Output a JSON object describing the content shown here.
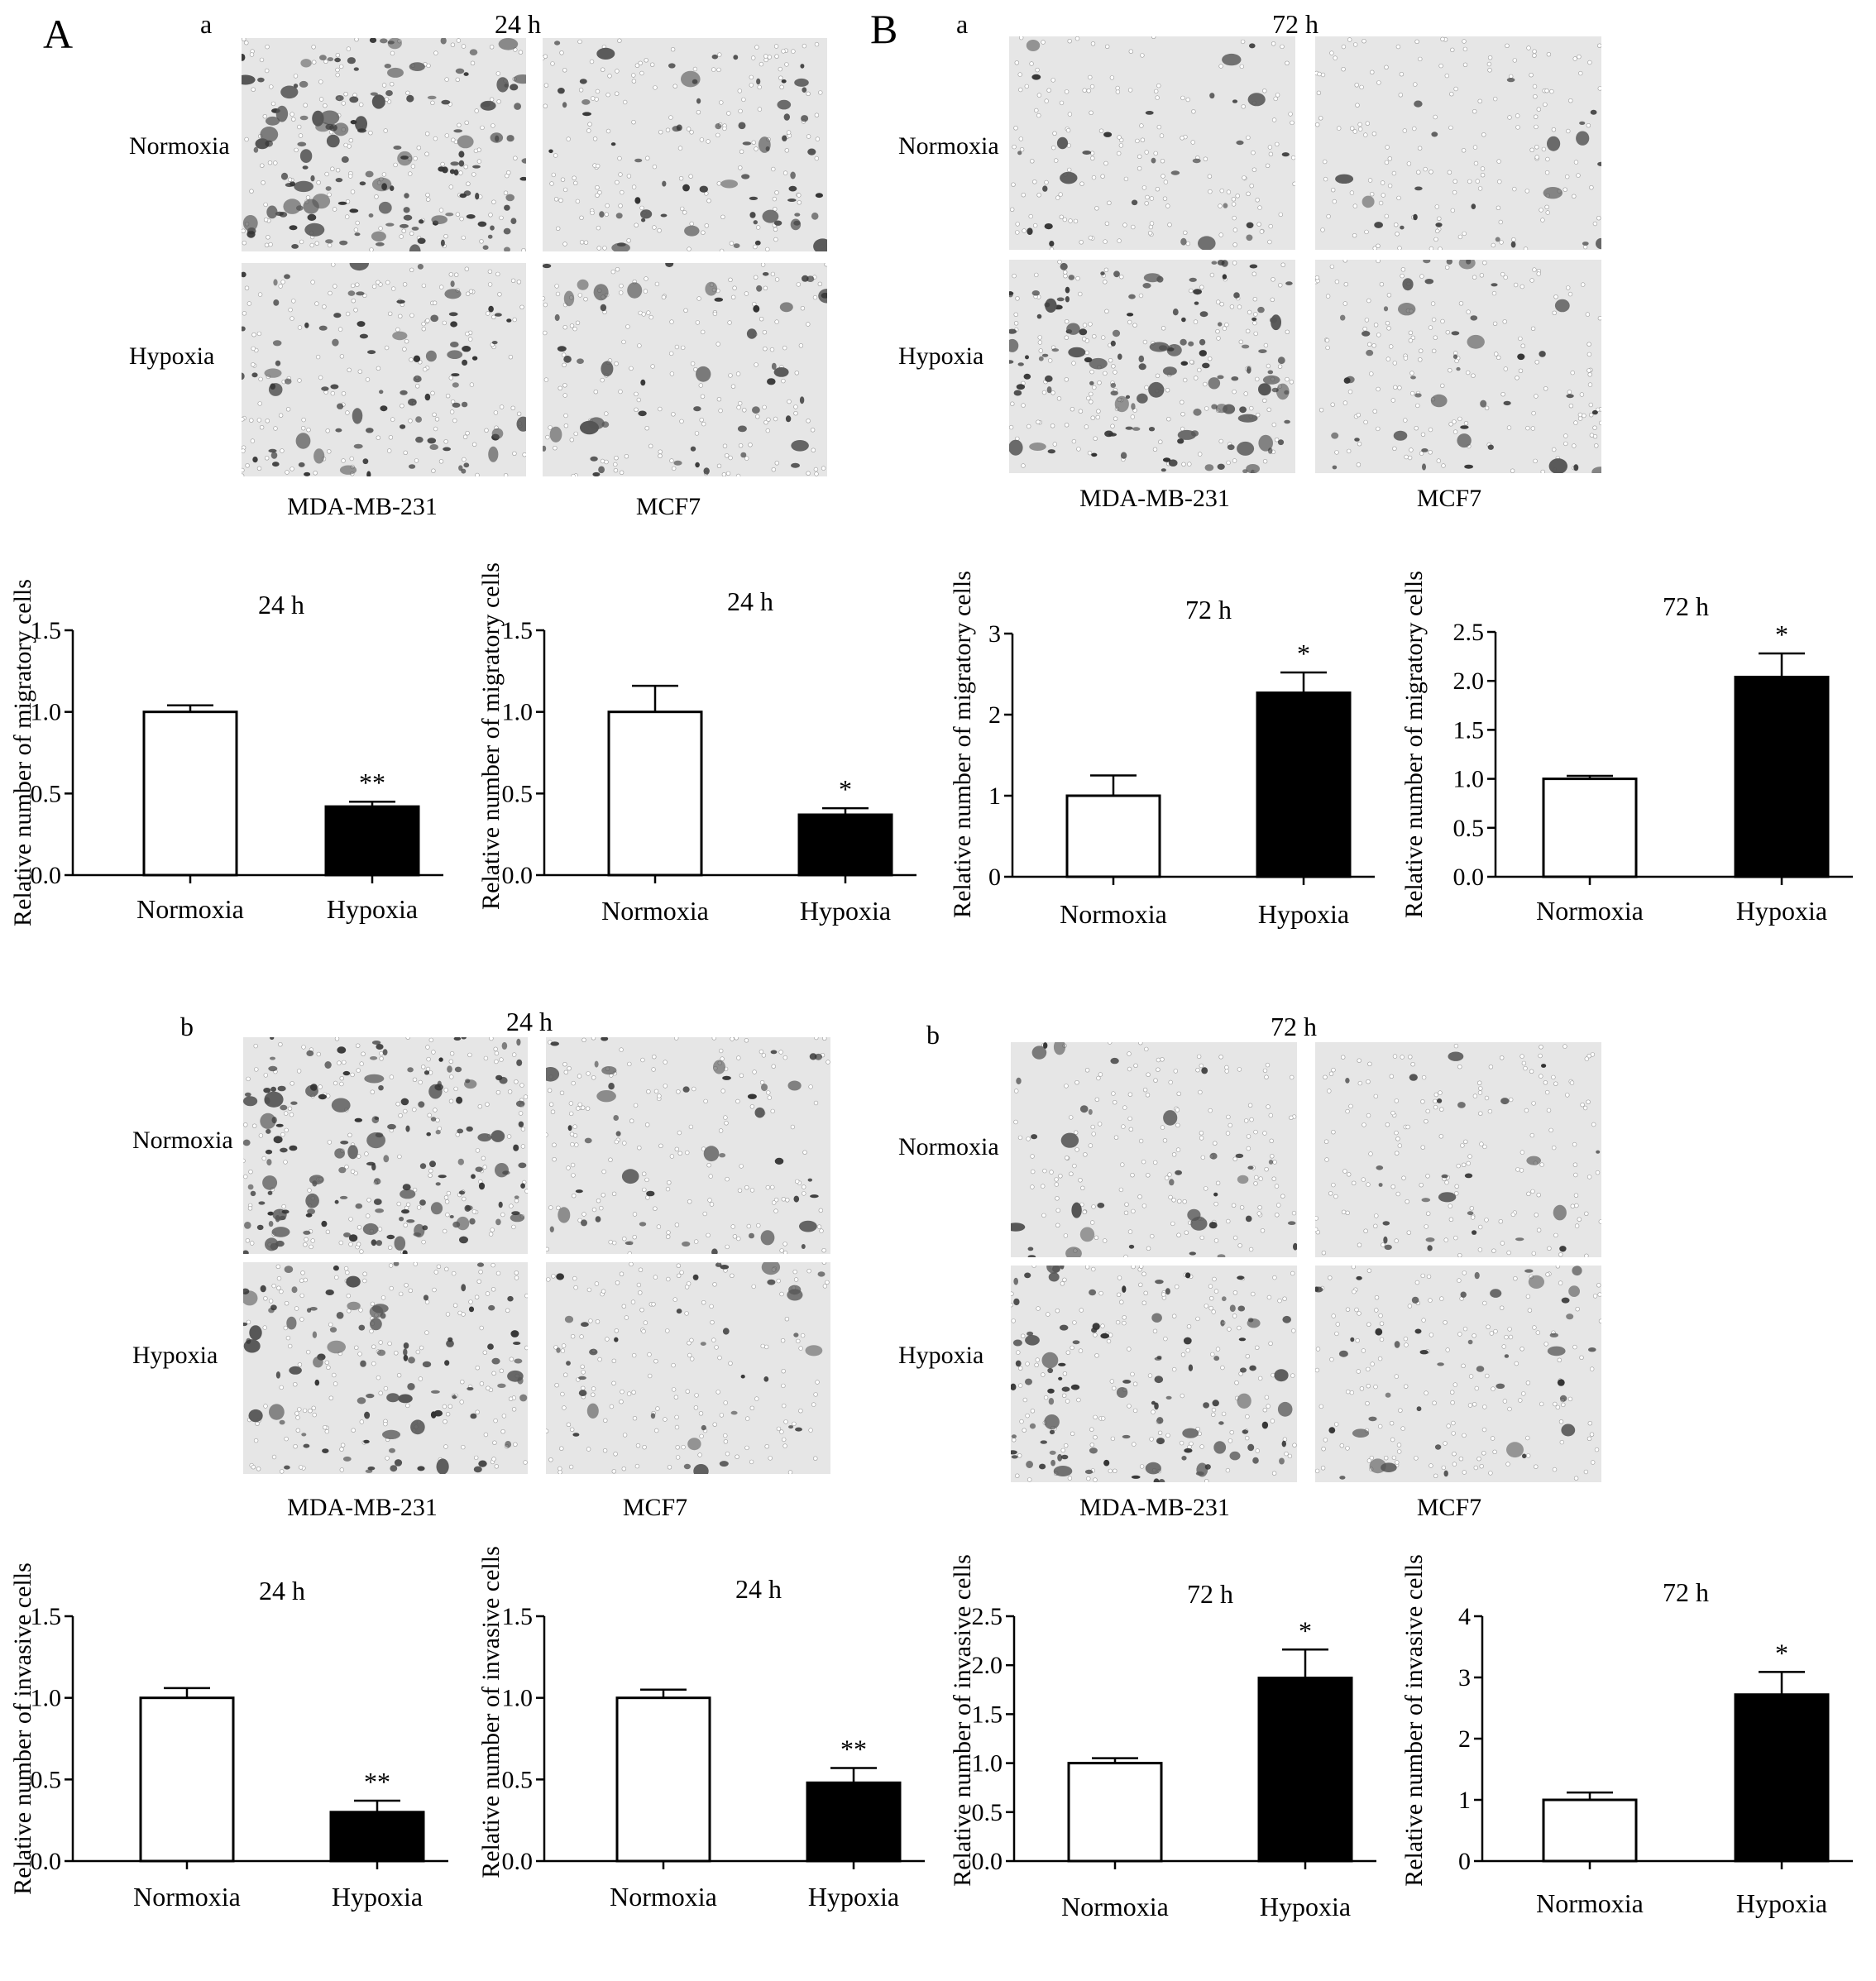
{
  "panels": {
    "A": {
      "letter": "A"
    },
    "B": {
      "letter": "B"
    }
  },
  "sections": [
    {
      "id": "A-a",
      "letter": "a",
      "time": "24 h",
      "row_labels": [
        "Normoxia",
        "Hypoxia"
      ],
      "col_labels": [
        "MDA-MB-231",
        "MCF7"
      ]
    },
    {
      "id": "B-a",
      "letter": "a",
      "time": "72 h",
      "row_labels": [
        "Normoxia",
        "Hypoxia"
      ],
      "col_labels": [
        "MDA-MB-231",
        "MCF7"
      ]
    },
    {
      "id": "A-b",
      "letter": "b",
      "time": "24 h",
      "row_labels": [
        "Normoxia",
        "Hypoxia"
      ],
      "col_labels": [
        "MDA-MB-231",
        "MCF7"
      ]
    },
    {
      "id": "B-b",
      "letter": "b",
      "time": "72 h",
      "row_labels": [
        "Normoxia",
        "Hypoxia"
      ],
      "col_labels": [
        "MDA-MB-231",
        "MCF7"
      ]
    }
  ],
  "micrograph_tone": {
    "background": "#e6e6e6",
    "cell": "#333333",
    "pore": "#ffffff"
  },
  "bar_colors": {
    "Normoxia": "#ffffff",
    "Hypoxia": "#000000"
  },
  "chart_data": [
    {
      "type": "bar",
      "title": "24 h",
      "ylabel": "Relative number of migratory cells",
      "categories": [
        "Normoxia",
        "Hypoxia"
      ],
      "values": [
        1.0,
        0.42
      ],
      "errors": [
        0.04,
        0.03
      ],
      "significance": [
        "",
        "**"
      ],
      "ylim": [
        0,
        1.5
      ],
      "yticks": [
        0,
        0.5,
        1.0,
        1.5
      ],
      "ytick_labels": [
        "0.0",
        "0.5",
        "1.0",
        "1.5"
      ]
    },
    {
      "type": "bar",
      "title": "24 h",
      "ylabel": "Relative number of migratory cells",
      "categories": [
        "Normoxia",
        "Hypoxia"
      ],
      "values": [
        1.0,
        0.37
      ],
      "errors": [
        0.16,
        0.04
      ],
      "significance": [
        "",
        "*"
      ],
      "ylim": [
        0,
        1.5
      ],
      "yticks": [
        0,
        0.5,
        1.0,
        1.5
      ],
      "ytick_labels": [
        "0.0",
        "0.5",
        "1.0",
        "1.5"
      ]
    },
    {
      "type": "bar",
      "title": "72 h",
      "ylabel": "Relative number of migratory cells",
      "categories": [
        "Normoxia",
        "Hypoxia"
      ],
      "values": [
        1.0,
        2.27
      ],
      "errors": [
        0.25,
        0.25
      ],
      "significance": [
        "",
        "*"
      ],
      "ylim": [
        0,
        3
      ],
      "yticks": [
        0,
        1,
        2,
        3
      ],
      "ytick_labels": [
        "0",
        "1",
        "2",
        "3"
      ]
    },
    {
      "type": "bar",
      "title": "72 h",
      "ylabel": "Relative number of migratory cells",
      "categories": [
        "Normoxia",
        "Hypoxia"
      ],
      "values": [
        1.0,
        2.04
      ],
      "errors": [
        0.03,
        0.24
      ],
      "significance": [
        "",
        "*"
      ],
      "ylim": [
        0,
        2.5
      ],
      "yticks": [
        0,
        0.5,
        1.0,
        1.5,
        2.0,
        2.5
      ],
      "ytick_labels": [
        "0.0",
        "0.5",
        "1.0",
        "1.5",
        "2.0",
        "2.5"
      ]
    },
    {
      "type": "bar",
      "title": "24 h",
      "ylabel": "Relative number of invasive cells",
      "categories": [
        "Normoxia",
        "Hypoxia"
      ],
      "values": [
        1.0,
        0.3
      ],
      "errors": [
        0.06,
        0.07
      ],
      "significance": [
        "",
        "**"
      ],
      "ylim": [
        0,
        1.5
      ],
      "yticks": [
        0,
        0.5,
        1.0,
        1.5
      ],
      "ytick_labels": [
        "0.0",
        "0.5",
        "1.0",
        "1.5"
      ]
    },
    {
      "type": "bar",
      "title": "24 h",
      "ylabel": "Relative number of invasive cells",
      "categories": [
        "Normoxia",
        "Hypoxia"
      ],
      "values": [
        1.0,
        0.48
      ],
      "errors": [
        0.05,
        0.09
      ],
      "significance": [
        "",
        "**"
      ],
      "ylim": [
        0,
        1.5
      ],
      "yticks": [
        0,
        0.5,
        1.0,
        1.5
      ],
      "ytick_labels": [
        "0.0",
        "0.5",
        "1.0",
        "1.5"
      ]
    },
    {
      "type": "bar",
      "title": "72 h",
      "ylabel": "Relative number of invasive cells",
      "categories": [
        "Normoxia",
        "Hypoxia"
      ],
      "values": [
        1.0,
        1.87
      ],
      "errors": [
        0.05,
        0.29
      ],
      "significance": [
        "",
        "*"
      ],
      "ylim": [
        0,
        2.5
      ],
      "yticks": [
        0,
        0.5,
        1.0,
        1.5,
        2.0,
        2.5
      ],
      "ytick_labels": [
        "0.0",
        "0.5",
        "1.0",
        "1.5",
        "2.0",
        "2.5"
      ]
    },
    {
      "type": "bar",
      "title": "72 h",
      "ylabel": "Relative number of invasive cells",
      "categories": [
        "Normoxia",
        "Hypoxia"
      ],
      "values": [
        1.0,
        2.72
      ],
      "errors": [
        0.12,
        0.37
      ],
      "significance": [
        "",
        "*"
      ],
      "ylim": [
        0,
        4
      ],
      "yticks": [
        0,
        1,
        2,
        3,
        4
      ],
      "ytick_labels": [
        "0",
        "1",
        "2",
        "3",
        "4"
      ]
    }
  ]
}
